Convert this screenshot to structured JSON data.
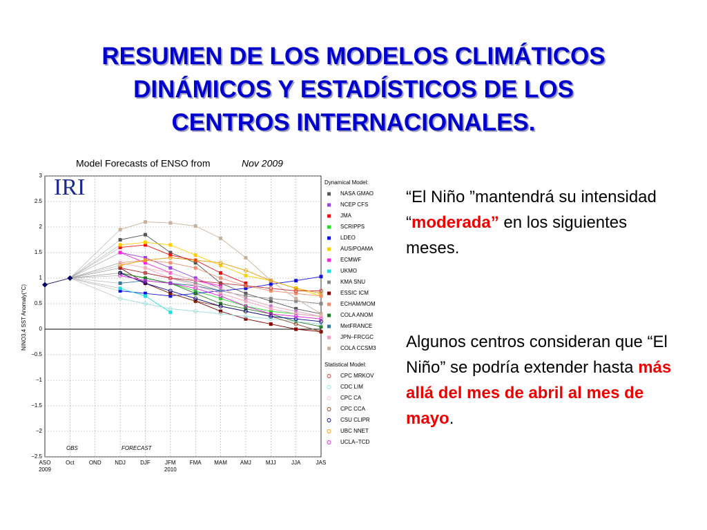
{
  "slide": {
    "title": [
      "RESUMEN DE LOS MODELOS CLIMÁTICOS",
      "DINÁMICOS Y ESTADÍSTICOS DE LOS",
      "CENTROS INTERNACIONALES."
    ],
    "paragraphs": [
      [
        {
          "text": "“El Niño ”mantendrá su intensidad “"
        },
        {
          "text": "moderada”",
          "emphasis": true
        },
        {
          "text": " en los siguientes meses."
        }
      ],
      [
        {
          "text": "Algunos centros consideran que “El Niño” se podría extender hasta "
        },
        {
          "text": "más allá del mes de abril al mes de mayo",
          "emphasis": true
        },
        {
          "text": "."
        }
      ]
    ]
  },
  "chart_data": {
    "type": "line",
    "title": "Model Forecasts of ENSO from",
    "title_italic": "Nov 2009",
    "logo": "IRI",
    "y_label": "NINO3.4 SST Anomaly(°C)",
    "annotations": [
      "OBS",
      "FORECAST"
    ],
    "years": [
      {
        "label": "2009",
        "category": 0
      },
      {
        "label": "2010",
        "category": 5
      }
    ],
    "legend_groups": [
      {
        "title": "Dynamical Model:",
        "marker": "square"
      },
      {
        "title": "Statistical Model:",
        "marker": "circle"
      }
    ],
    "categories": [
      "ASO",
      "Oct",
      "OND",
      "NDJ",
      "DJF",
      "JFM",
      "FMA",
      "MAM",
      "AMJ",
      "MJJ",
      "JJA",
      "JAS"
    ],
    "ylim": [
      -2.5,
      3
    ],
    "yticks": [
      {
        "value": -2.5,
        "label": "−2.5"
      },
      {
        "value": -2,
        "label": "−2"
      },
      {
        "value": -1.5,
        "label": "−1.5"
      },
      {
        "value": -1,
        "label": "−1"
      },
      {
        "value": -0.5,
        "label": "−0.5"
      },
      0,
      0.5,
      1,
      1.5,
      2,
      2.5,
      3
    ],
    "grid": true,
    "observed": {
      "color": "#000060",
      "values": [
        0.87,
        1.0,
        null,
        null,
        null,
        null,
        null,
        null,
        null,
        null,
        null,
        null
      ]
    },
    "series": [
      {
        "name": "NASA GMAO",
        "group": 0,
        "color": "#555555",
        "values": [
          null,
          null,
          null,
          1.75,
          1.85,
          1.5,
          1.3,
          0.9,
          0.7,
          0.55,
          0.4,
          0.3
        ]
      },
      {
        "name": "NCEP CFS",
        "group": 0,
        "color": "#9944dd",
        "values": [
          null,
          null,
          null,
          1.5,
          1.4,
          1.2,
          1.0,
          0.8,
          0.6,
          0.45,
          0.35,
          0.25
        ]
      },
      {
        "name": "JMA",
        "group": 0,
        "color": "#ee1111",
        "values": [
          null,
          null,
          null,
          1.6,
          1.65,
          1.45,
          1.35,
          1.1,
          0.9,
          null,
          null,
          null
        ]
      },
      {
        "name": "SCRIPPS",
        "group": 0,
        "color": "#22dd22",
        "values": [
          null,
          null,
          null,
          1.1,
          1.0,
          0.9,
          0.75,
          0.6,
          0.45,
          0.35,
          0.3,
          0.25
        ]
      },
      {
        "name": "LDEO",
        "group": 0,
        "color": "#1111dd",
        "values": [
          null,
          null,
          null,
          0.75,
          0.7,
          0.65,
          0.7,
          0.75,
          0.8,
          0.88,
          0.95,
          1.03
        ]
      },
      {
        "name": "AUS/POAMA",
        "group": 0,
        "color": "#ffcc00",
        "values": [
          null,
          null,
          null,
          1.65,
          1.7,
          1.65,
          1.45,
          1.25,
          1.05,
          0.95,
          0.8,
          0.65
        ]
      },
      {
        "name": "ECMWF",
        "group": 0,
        "color": "#ff22dd",
        "values": [
          null,
          null,
          null,
          1.5,
          1.3,
          1.1,
          0.95,
          0.85,
          null,
          null,
          null,
          null
        ]
      },
      {
        "name": "UKMO",
        "group": 0,
        "color": "#22dddd",
        "values": [
          null,
          null,
          null,
          0.8,
          0.65,
          0.33,
          null,
          null,
          null,
          null,
          null,
          null
        ]
      },
      {
        "name": "KMA SNU",
        "group": 0,
        "color": "#888888",
        "values": [
          null,
          null,
          null,
          1.2,
          1.1,
          1.0,
          0.9,
          0.75,
          0.65,
          0.6,
          0.55,
          0.5
        ]
      },
      {
        "name": "ESSIC ICM",
        "group": 0,
        "color": "#880000",
        "values": [
          null,
          null,
          null,
          1.2,
          0.9,
          0.7,
          0.55,
          0.35,
          0.2,
          0.1,
          0.0,
          -0.05
        ]
      },
      {
        "name": "ECHAM/MOM",
        "group": 0,
        "color": "#f09070",
        "values": [
          null,
          null,
          null,
          1.3,
          1.35,
          1.3,
          1.2,
          1.0,
          0.85,
          0.75,
          0.7,
          0.65
        ]
      },
      {
        "name": "COLA ANOM",
        "group": 0,
        "color": "#227722",
        "values": [
          null,
          null,
          null,
          1.1,
          1.0,
          0.9,
          0.7,
          0.5,
          0.4,
          0.3,
          0.15,
          0.05
        ]
      },
      {
        "name": "MetFRANCE",
        "group": 0,
        "color": "#337799",
        "values": [
          null,
          null,
          null,
          0.9,
          0.95,
          0.9,
          0.85,
          0.75,
          null,
          null,
          null,
          null
        ]
      },
      {
        "name": "JPN–FRCGC",
        "group": 0,
        "color": "#f0a0c0",
        "values": [
          null,
          null,
          null,
          1.3,
          1.2,
          1.0,
          0.85,
          0.7,
          0.55,
          0.4,
          0.3,
          0.25
        ]
      },
      {
        "name": "COLA CCSM3",
        "group": 0,
        "color": "#c8b09a",
        "values": [
          null,
          null,
          null,
          1.95,
          2.1,
          2.08,
          2.02,
          1.78,
          1.4,
          0.95,
          0.6,
          0.3
        ]
      },
      {
        "name": "CPC MRKOV",
        "group": 1,
        "color": "#cc3333",
        "values": [
          null,
          null,
          null,
          1.2,
          1.1,
          1.0,
          0.95,
          0.9,
          0.85,
          0.8,
          0.75,
          0.75
        ]
      },
      {
        "name": "CDC LIM",
        "group": 1,
        "color": "#99dddd",
        "values": [
          null,
          null,
          null,
          0.6,
          0.5,
          0.4,
          0.35,
          0.3,
          0.25,
          0.2,
          0.15,
          0.1
        ]
      },
      {
        "name": "CPC CA",
        "group": 1,
        "color": "#f0c0c0",
        "values": [
          null,
          null,
          null,
          1.3,
          1.2,
          1.1,
          0.95,
          0.8,
          0.6,
          0.45,
          0.35,
          0.25
        ]
      },
      {
        "name": "CPC CCA",
        "group": 1,
        "color": "#884422",
        "values": [
          null,
          null,
          null,
          1.1,
          0.9,
          0.7,
          0.55,
          0.45,
          0.35,
          0.25,
          0.1,
          -0.05
        ]
      },
      {
        "name": "CSU CLIPR",
        "group": 1,
        "color": "#000088",
        "values": [
          null,
          null,
          null,
          1.1,
          0.9,
          0.75,
          0.6,
          0.45,
          0.35,
          0.25,
          0.2,
          0.15
        ]
      },
      {
        "name": "UBC NNET",
        "group": 1,
        "color": "#ee9900",
        "values": [
          null,
          null,
          null,
          1.25,
          1.35,
          1.4,
          1.35,
          1.3,
          1.15,
          0.95,
          0.8,
          0.7
        ]
      },
      {
        "name": "UCLA–TCD",
        "group": 1,
        "color": "#dd22dd",
        "values": [
          null,
          null,
          null,
          1.05,
          0.95,
          0.9,
          0.8,
          0.65,
          0.45,
          0.3,
          0.25,
          0.2
        ]
      }
    ]
  }
}
